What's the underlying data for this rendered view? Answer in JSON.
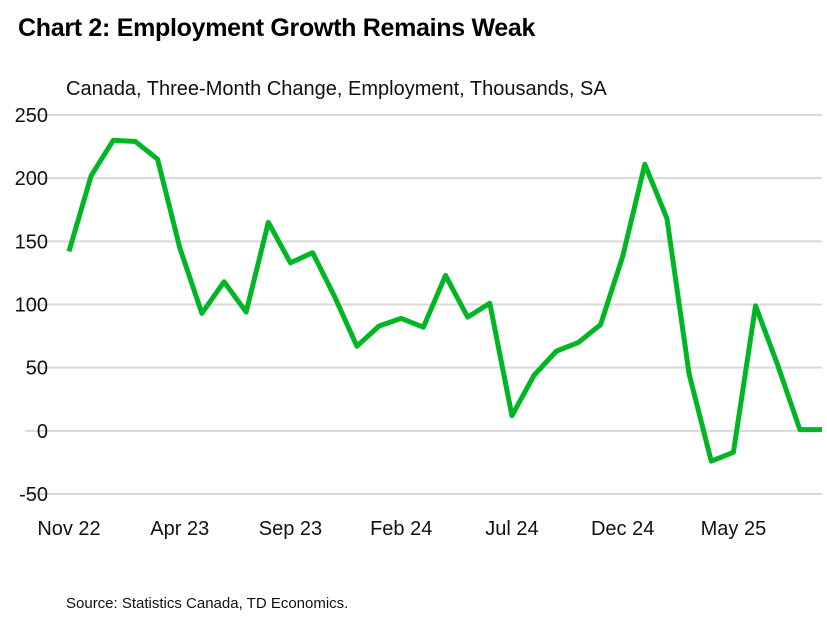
{
  "chart_data": {
    "type": "line",
    "title": "Chart 2: Employment Growth Remains Weak",
    "subtitle": "Canada, Three-Month Change, Employment, Thousands, SA",
    "source": "Source: Statistics Canada, TD Economics.",
    "ylim": [
      -50,
      250
    ],
    "yticks": [
      250,
      200,
      150,
      100,
      50,
      0,
      -50
    ],
    "xtick_labels": [
      "Nov 22",
      "Apr 23",
      "Sep 23",
      "Feb 24",
      "Jul 24",
      "Dec 24",
      "May 25"
    ],
    "grid": "horizontal",
    "line_color": "#00b624",
    "x": [
      "Nov 22",
      "Dec 22",
      "Jan 23",
      "Feb 23",
      "Mar 23",
      "Apr 23",
      "May 23",
      "Jun 23",
      "Jul 23",
      "Aug 23",
      "Sep 23",
      "Oct 23",
      "Nov 23",
      "Dec 23",
      "Jan 24",
      "Feb 24",
      "Mar 24",
      "Apr 24",
      "May 24",
      "Jun 24",
      "Jul 24",
      "Aug 24",
      "Sep 24",
      "Oct 24",
      "Nov 24",
      "Dec 24",
      "Jan 25",
      "Feb 25",
      "Mar 25",
      "Apr 25",
      "May 25",
      "Jun 25",
      "Jul 25",
      "Aug 25",
      "Sep 25"
    ],
    "values": [
      142,
      202,
      230,
      229,
      215,
      145,
      93,
      118,
      94,
      165,
      133,
      141,
      106,
      67,
      83,
      89,
      82,
      123,
      90,
      101,
      12,
      44,
      63,
      70,
      84,
      138,
      211,
      168,
      45,
      -24,
      -17,
      99,
      52,
      1,
      1
    ]
  }
}
